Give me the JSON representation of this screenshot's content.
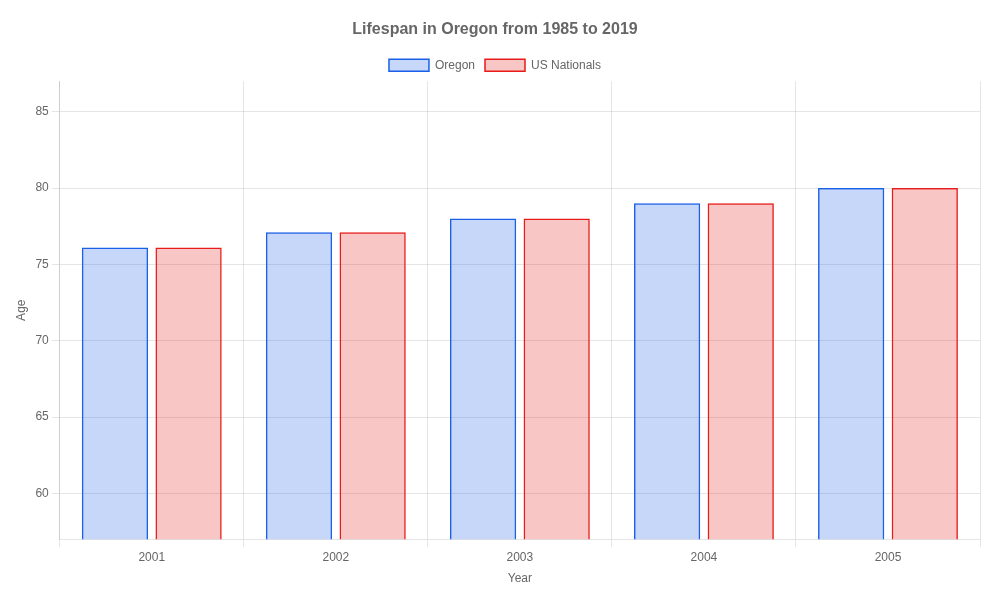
{
  "chart_data": {
    "type": "bar",
    "title": "Lifespan in Oregon from 1985 to 2019",
    "x_label": "Year",
    "y_label": "Age",
    "categories": [
      "2001",
      "2002",
      "2003",
      "2004",
      "2005"
    ],
    "series": [
      {
        "name": "Oregon",
        "color": "#1a5fe8",
        "values": [
          76.1,
          77.1,
          78.0,
          79.0,
          80.0
        ]
      },
      {
        "name": "US Nationals",
        "color": "#e81a1a",
        "values": [
          76.1,
          77.1,
          78.0,
          79.0,
          80.0
        ]
      }
    ],
    "ylim": [
      57,
      87
    ],
    "yticks": [
      60,
      65,
      70,
      75,
      80,
      85
    ],
    "grid": true,
    "legend": "top"
  }
}
